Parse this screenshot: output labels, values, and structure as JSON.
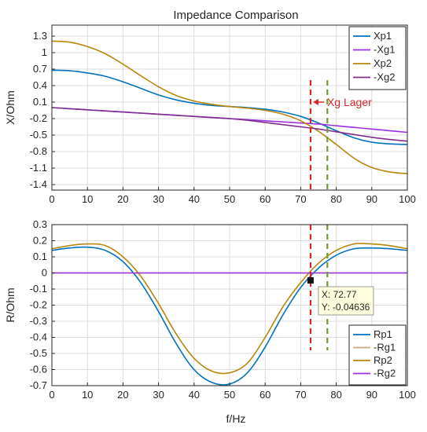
{
  "title": "Impedance Comparison",
  "xlabel": "f/Hz",
  "chart_data": [
    {
      "type": "line",
      "ylabel": "X/Ohm",
      "xlim": [
        0,
        100
      ],
      "ylim": [
        -1.5,
        1.5
      ],
      "xticks": [
        0,
        10,
        20,
        30,
        40,
        50,
        60,
        70,
        80,
        90,
        100
      ],
      "yticks": [
        -1.4,
        -1.1,
        -0.8,
        -0.5,
        -0.2,
        0.1,
        0.4,
        0.7,
        1,
        1.3
      ],
      "ytick_labels": [
        "-1.4",
        "-1.1",
        "-0.8",
        "-0.5",
        "-0.2",
        "0.1",
        "0.4",
        "0.7",
        "1",
        "1.3"
      ],
      "grid": true,
      "legend": "top-right",
      "x": [
        0,
        5,
        10,
        15,
        20,
        25,
        30,
        35,
        40,
        45,
        50,
        55,
        60,
        65,
        70,
        75,
        80,
        85,
        90,
        95,
        100
      ],
      "series": [
        {
          "name": "Xp1",
          "color": "#0072BD",
          "values": [
            0.68,
            0.67,
            0.63,
            0.57,
            0.47,
            0.35,
            0.23,
            0.14,
            0.08,
            0.04,
            0.02,
            0.0,
            -0.03,
            -0.08,
            -0.16,
            -0.28,
            -0.42,
            -0.55,
            -0.63,
            -0.66,
            -0.67
          ]
        },
        {
          "name": "-Xg1",
          "color": "#9B30E0",
          "values": [
            0.0,
            -0.02,
            -0.04,
            -0.06,
            -0.08,
            -0.1,
            -0.12,
            -0.14,
            -0.16,
            -0.18,
            -0.2,
            -0.22,
            -0.24,
            -0.26,
            -0.28,
            -0.3,
            -0.33,
            -0.36,
            -0.39,
            -0.42,
            -0.45
          ]
        },
        {
          "name": "Xp2",
          "color": "#B8860B",
          "values": [
            1.21,
            1.19,
            1.11,
            0.98,
            0.79,
            0.58,
            0.38,
            0.22,
            0.12,
            0.06,
            0.02,
            -0.01,
            -0.05,
            -0.12,
            -0.24,
            -0.43,
            -0.67,
            -0.92,
            -1.09,
            -1.17,
            -1.2
          ]
        },
        {
          "name": "-Xg2",
          "color": "#7E2F8E",
          "values": [
            0.0,
            -0.02,
            -0.04,
            -0.06,
            -0.08,
            -0.1,
            -0.12,
            -0.14,
            -0.16,
            -0.18,
            -0.2,
            -0.23,
            -0.27,
            -0.31,
            -0.35,
            -0.39,
            -0.44,
            -0.49,
            -0.54,
            -0.58,
            -0.61
          ]
        }
      ],
      "vlines": [
        {
          "x": 72.77,
          "color": "#D62728",
          "style": "dashed"
        },
        {
          "x": 77.5,
          "color": "#6B9E2E",
          "style": "dashed"
        }
      ],
      "annotation": {
        "text": "Xg Lager",
        "arrow_to_x": 73,
        "arrow_to_y": 0.1,
        "color": "#D62728"
      }
    },
    {
      "type": "line",
      "ylabel": "R/Ohm",
      "xlim": [
        0,
        100
      ],
      "ylim": [
        -0.7,
        0.3
      ],
      "xticks": [
        0,
        10,
        20,
        30,
        40,
        50,
        60,
        70,
        80,
        90,
        100
      ],
      "yticks": [
        -0.7,
        -0.6,
        -0.5,
        -0.4,
        -0.3,
        -0.2,
        -0.1,
        0,
        0.1,
        0.2,
        0.3
      ],
      "ytick_labels": [
        "-0.7",
        "-0.6",
        "-0.5",
        "-0.4",
        "-0.3",
        "-0.2",
        "-0.1",
        "0",
        "0.1",
        "0.2",
        "0.3"
      ],
      "grid": true,
      "legend": "bottom-right",
      "x": [
        0,
        5,
        10,
        15,
        20,
        25,
        30,
        35,
        40,
        45,
        50,
        55,
        60,
        65,
        70,
        75,
        80,
        85,
        90,
        95,
        100
      ],
      "series": [
        {
          "name": "Rp1",
          "color": "#0072BD",
          "values": [
            0.14,
            0.155,
            0.16,
            0.14,
            0.07,
            -0.06,
            -0.24,
            -0.44,
            -0.6,
            -0.68,
            -0.69,
            -0.62,
            -0.46,
            -0.26,
            -0.09,
            0.03,
            0.11,
            0.15,
            0.155,
            0.15,
            0.14
          ]
        },
        {
          "name": "-Rg1",
          "color": "#C8AA78",
          "values": [
            0.0,
            0.0,
            0.0,
            0.0,
            0.0,
            0.0,
            0.0,
            0.0,
            0.0,
            0.0,
            0.0,
            0.0,
            0.0,
            0.0,
            0.0,
            0.0,
            0.0,
            0.0,
            0.0,
            0.0,
            0.0
          ]
        },
        {
          "name": "Rp2",
          "color": "#B8860B",
          "values": [
            0.15,
            0.17,
            0.18,
            0.17,
            0.1,
            -0.02,
            -0.19,
            -0.38,
            -0.53,
            -0.61,
            -0.62,
            -0.56,
            -0.4,
            -0.21,
            -0.06,
            0.06,
            0.14,
            0.18,
            0.18,
            0.17,
            0.15
          ]
        },
        {
          "name": "-Rg2",
          "color": "#9B30E0",
          "values": [
            0.0,
            0.0,
            0.0,
            0.0,
            0.0,
            0.0,
            0.0,
            0.0,
            0.0,
            0.0,
            0.0,
            0.0,
            0.0,
            0.0,
            0.0,
            0.0,
            0.0,
            0.0,
            0.0,
            0.0,
            0.0
          ]
        }
      ],
      "vlines": [
        {
          "x": 72.77,
          "color": "#D62728",
          "style": "dashed"
        },
        {
          "x": 77.5,
          "color": "#6B9E2E",
          "style": "dashed"
        }
      ],
      "datatip": {
        "x": 72.77,
        "y": -0.04636,
        "x_text": "X: 72.77",
        "y_text": "Y: -0.04636"
      }
    }
  ]
}
